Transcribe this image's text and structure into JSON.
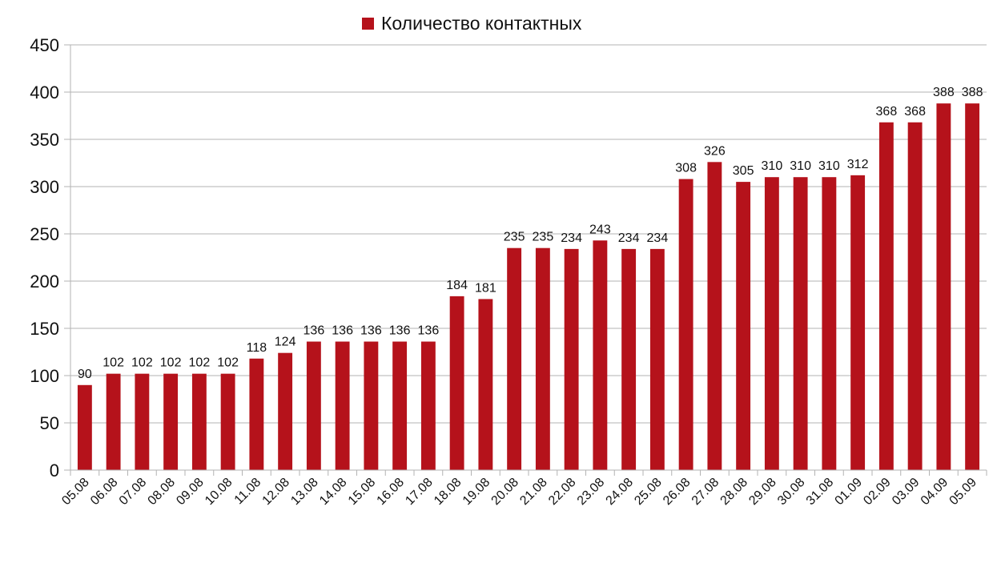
{
  "legend": {
    "label": "Количество контактных"
  },
  "chart_data": {
    "type": "bar",
    "title": "",
    "xlabel": "",
    "ylabel": "",
    "ylim": [
      0,
      450
    ],
    "yticks": [
      0,
      50,
      100,
      150,
      200,
      250,
      300,
      350,
      400,
      450
    ],
    "grid": true,
    "legend_position": "top",
    "color": "#b5121b",
    "categories": [
      "05.08",
      "06.08",
      "07.08",
      "08.08",
      "09.08",
      "10.08",
      "11.08",
      "12.08",
      "13.08",
      "14.08",
      "15.08",
      "16.08",
      "17.08",
      "18.08",
      "19.08",
      "20.08",
      "21.08",
      "22.08",
      "23.08",
      "24.08",
      "25.08",
      "26.08",
      "27.08",
      "28.08",
      "29.08",
      "30.08",
      "31.08",
      "01.09",
      "02.09",
      "03.09",
      "04.09",
      "05.09"
    ],
    "series": [
      {
        "name": "Количество контактных",
        "values": [
          90,
          102,
          102,
          102,
          102,
          102,
          118,
          124,
          136,
          136,
          136,
          136,
          136,
          184,
          181,
          235,
          235,
          234,
          243,
          234,
          234,
          308,
          326,
          305,
          310,
          310,
          310,
          312,
          368,
          368,
          388,
          388
        ]
      }
    ]
  }
}
